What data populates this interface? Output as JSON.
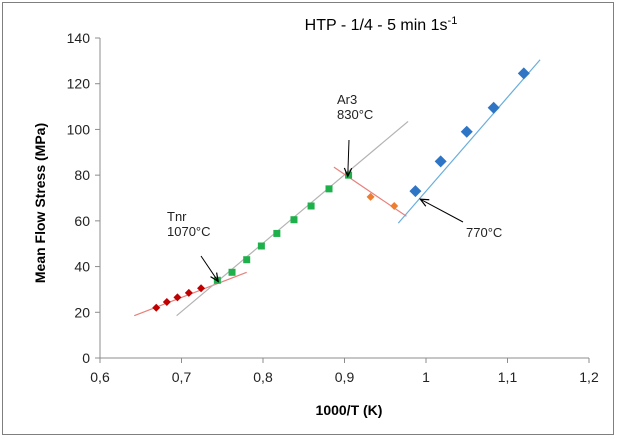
{
  "chart_data": {
    "type": "scatter",
    "title": "HTP - 1/4 - 5 min 1s",
    "title_superscript": "-1",
    "xlabel": "1000/T (K)",
    "ylabel": "Mean Flow Stress (MPa)",
    "xlim": [
      0.6,
      1.2
    ],
    "ylim": [
      0,
      140
    ],
    "x_ticks": [
      "0,6",
      "0,7",
      "0,8",
      "0,9",
      "1",
      "1,1",
      "1,2"
    ],
    "y_ticks": [
      "0",
      "20",
      "40",
      "60",
      "80",
      "100",
      "120",
      "140"
    ],
    "grid": false,
    "legend": "none",
    "series": [
      {
        "color": "#c00000",
        "marker": "diamond",
        "points": [
          [
            0.669,
            22
          ],
          [
            0.682,
            24.5
          ],
          [
            0.695,
            26.5
          ],
          [
            0.709,
            28.5
          ],
          [
            0.724,
            30.5
          ]
        ]
      },
      {
        "color": "#1eb04a",
        "marker": "square",
        "points": [
          [
            0.744,
            34
          ],
          [
            0.762,
            37.5
          ],
          [
            0.78,
            43
          ],
          [
            0.798,
            49
          ],
          [
            0.817,
            54.5
          ],
          [
            0.838,
            60.5
          ],
          [
            0.859,
            66.5
          ],
          [
            0.881,
            74
          ],
          [
            0.905,
            80
          ]
        ]
      },
      {
        "color": "#ed7d31",
        "marker": "diamond",
        "points": [
          [
            0.932,
            70.5
          ],
          [
            0.961,
            66.5
          ]
        ]
      },
      {
        "color": "#2e75c6",
        "marker": "diamond",
        "points": [
          [
            0.987,
            73
          ],
          [
            1.018,
            86
          ],
          [
            1.05,
            99
          ],
          [
            1.083,
            109.5
          ],
          [
            1.12,
            124.5
          ]
        ]
      }
    ],
    "trendlines": [
      {
        "color": "#e8807a",
        "from": [
          0.642,
          18.5
        ],
        "to": [
          0.78,
          37.5
        ]
      },
      {
        "color": "#b3b3b3",
        "from": [
          0.694,
          18.5
        ],
        "to": [
          0.978,
          103.5
        ]
      },
      {
        "color": "#e8807a",
        "from": [
          0.887,
          83.5
        ],
        "to": [
          0.976,
          62
        ]
      },
      {
        "color": "#6aaedc",
        "from": [
          0.966,
          59
        ],
        "to": [
          1.14,
          130.5
        ]
      }
    ],
    "annotations": [
      {
        "lines": [
          "Tnr",
          "1070°C"
        ],
        "arrow_to": [
          0.745,
          33.5
        ]
      },
      {
        "lines": [
          "Ar3",
          "830°C"
        ],
        "arrow_to": [
          0.904,
          79.5
        ]
      },
      {
        "lines": [
          "770°C"
        ],
        "arrow_to": [
          0.993,
          69.5
        ]
      }
    ]
  }
}
